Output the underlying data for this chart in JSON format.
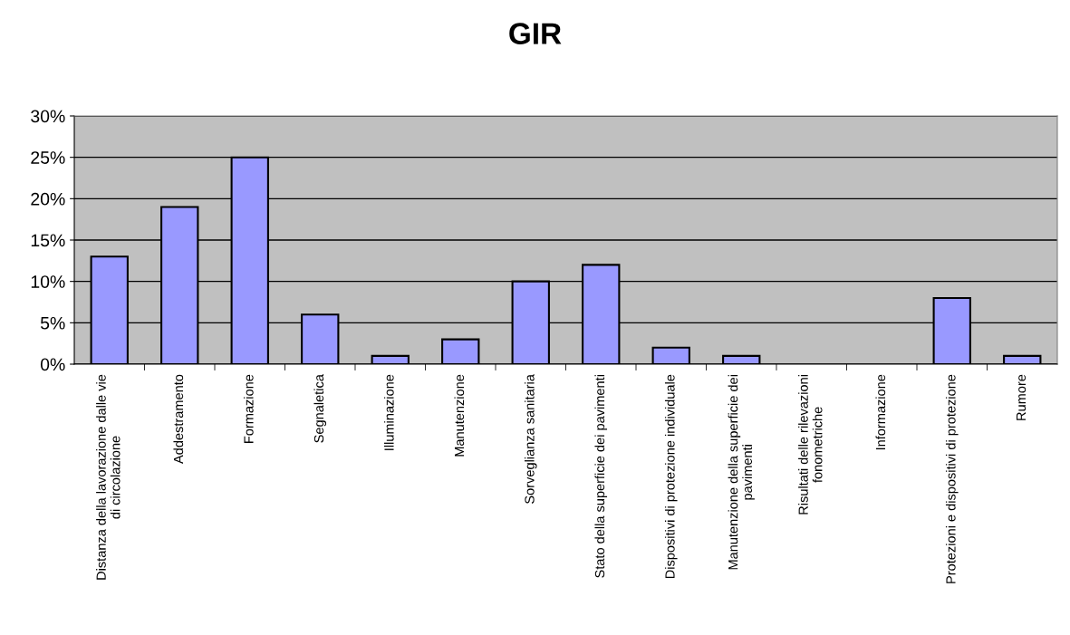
{
  "chart_data": {
    "type": "bar",
    "title": "GIR",
    "categories": [
      "Distanza della lavorazione dalle vie\ndi circolazione",
      "Addestramento",
      "Formazione",
      "Segnaletica",
      "Illuminazione",
      "Manutenzione",
      "Sorveglianza sanitaria",
      "Stato della superficie dei pavimenti",
      "Dispositivi di protezione individuale",
      "Manutenzione della superficie dei\npavimenti",
      "Risultati delle rilevazioni\nfonometriche",
      "Informazione",
      "Protezioni e dispositivi di protezione",
      "Rumore"
    ],
    "values": [
      13,
      19,
      25,
      6,
      1,
      3,
      10,
      12,
      2,
      1,
      0,
      0,
      8,
      1
    ],
    "color": "#9999ff",
    "ylim": [
      0,
      30
    ],
    "yticks": [
      {
        "value": 0,
        "label": "0%"
      },
      {
        "value": 5,
        "label": "5%"
      },
      {
        "value": 10,
        "label": "10%"
      },
      {
        "value": 15,
        "label": "15%"
      },
      {
        "value": 20,
        "label": "20%"
      },
      {
        "value": 25,
        "label": "25%"
      },
      {
        "value": 30,
        "label": "30%"
      }
    ],
    "grid": "y",
    "legend": false
  }
}
